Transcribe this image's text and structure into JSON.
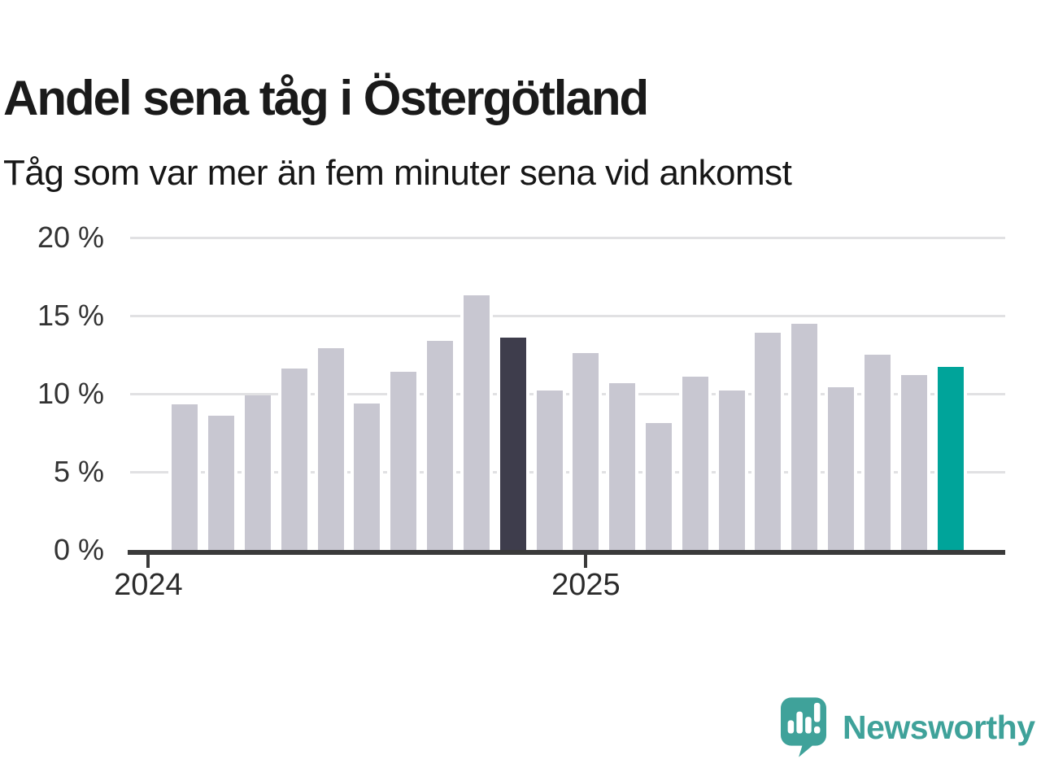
{
  "header": {
    "title": "Andel sena tåg i Östergötland",
    "subtitle": "Tåg som var mer än fem minuter sena vid ankomst"
  },
  "footer": {
    "brand": "Newsworthy",
    "logo_icon": "newsworthy-speech-bubble-chart-icon"
  },
  "colors": {
    "bar_default": "#c8c7d1",
    "bar_dark_highlight": "#3e3d4c",
    "bar_teal_highlight": "#00a49a",
    "axis": "#3a3a3a",
    "gridline": "#e1e1e3",
    "logo_teal": "#3fa29a",
    "title_text": "#1a1a1a",
    "axis_text": "#333333"
  },
  "chart_data": {
    "type": "bar",
    "title": "Andel sena tåg i Östergötland",
    "subtitle": "Tåg som var mer än fem minuter sena vid ankomst",
    "xlabel": "",
    "ylabel": "",
    "unit": "%",
    "ylim": [
      0,
      20
    ],
    "grid": true,
    "legend": "none",
    "yticks": [
      {
        "value": 0,
        "label": "0 %"
      },
      {
        "value": 5,
        "label": "5 %"
      },
      {
        "value": 10,
        "label": "10 %"
      },
      {
        "value": 15,
        "label": "15 %"
      },
      {
        "value": 20,
        "label": "20 %"
      }
    ],
    "categories": [
      "2024-02",
      "2024-03",
      "2024-04",
      "2024-05",
      "2024-06",
      "2024-07",
      "2024-08",
      "2024-09",
      "2024-10",
      "2024-11",
      "2024-12",
      "2025-01",
      "2025-02",
      "2025-03",
      "2025-04",
      "2025-05",
      "2025-06",
      "2025-07",
      "2025-08",
      "2025-09",
      "2025-10",
      "2025-11"
    ],
    "values": [
      9.3,
      8.6,
      9.9,
      11.6,
      12.9,
      9.4,
      11.4,
      13.4,
      16.3,
      13.6,
      10.2,
      12.6,
      10.7,
      8.1,
      11.1,
      10.2,
      13.9,
      14.5,
      10.4,
      12.5,
      11.2,
      11.7
    ],
    "highlights": {
      "dark_index": 9,
      "teal_index": 21
    },
    "lead_empty_slots": 1,
    "trail_empty_slots": 1,
    "year_ticks": [
      {
        "label": "2024",
        "slot_index": 0
      },
      {
        "label": "2025",
        "slot_index": 12
      }
    ]
  }
}
